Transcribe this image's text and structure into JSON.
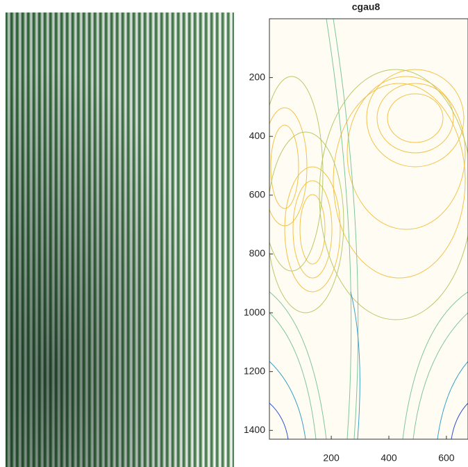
{
  "chart_data": {
    "type": "contour",
    "title": "cgau8",
    "xlim": [
      -15,
      675
    ],
    "xticks": [
      200,
      400,
      600
    ],
    "ylim": [
      0,
      1430
    ],
    "yticks": [
      200,
      400,
      600,
      800,
      1000,
      1200,
      1400
    ],
    "y_reversed": true
  }
}
